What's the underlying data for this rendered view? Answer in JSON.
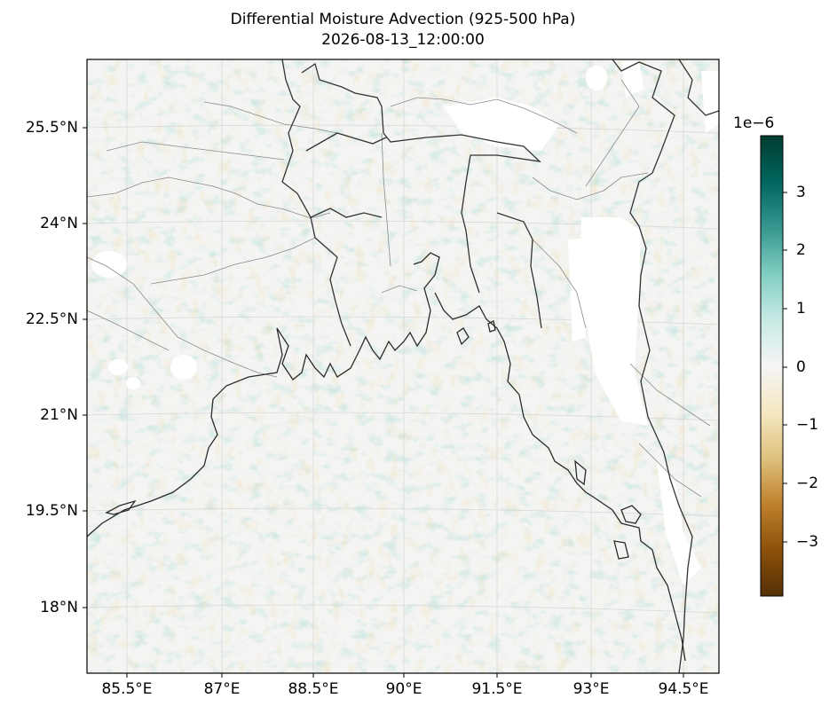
{
  "title": "Differential Moisture Advection (925-500 hPa)",
  "subtitle": "2026-08-13_12:00:00",
  "lon_labels": [
    "85.5°E",
    "87°E",
    "88.5°E",
    "90°E",
    "91.5°E",
    "93°E",
    "94.5°E"
  ],
  "lat_labels": [
    "25.5°N",
    "24°N",
    "22.5°N",
    "21°N",
    "19.5°N",
    "18°N"
  ],
  "colorbar": {
    "exponent_label": "1e−6",
    "tick_labels": [
      "3",
      "2",
      "1",
      "0",
      "−1",
      "−2",
      "−3"
    ],
    "colormap": "BrBG",
    "colors": [
      "#543005",
      "#8c510a",
      "#bf812d",
      "#dfc27d",
      "#f6e8c3",
      "#f5f5f5",
      "#c7eae5",
      "#80cdc1",
      "#35978f",
      "#01665e",
      "#003c30"
    ]
  },
  "map_colors": {
    "coast": "#2b2b2b",
    "borders": "#8a8a8a",
    "grid": "#d9d9d9",
    "masked": "#ffffff"
  }
}
